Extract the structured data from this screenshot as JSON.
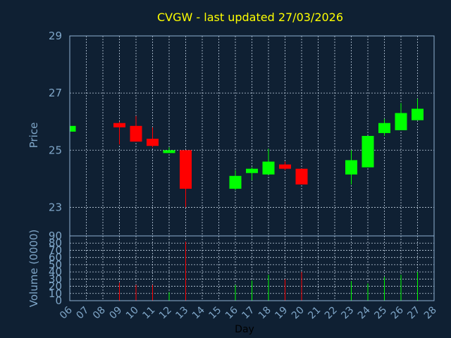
{
  "chart_data": {
    "type": "candlestick",
    "title": "CVGW - last updated 27/03/2026",
    "ylabel_price": "Price",
    "ylabel_volume": "Volume (0000)",
    "xlabel": "Day",
    "price_ylim": [
      22,
      29
    ],
    "price_ticks": [
      "23",
      "25",
      "27",
      "29"
    ],
    "volume_ylim": [
      0,
      90
    ],
    "volume_ticks": [
      "0",
      "10",
      "20",
      "30",
      "40",
      "50",
      "60",
      "70",
      "80",
      "90"
    ],
    "x_ticks": [
      "06",
      "07",
      "08",
      "09",
      "10",
      "11",
      "12",
      "13",
      "14",
      "15",
      "16",
      "17",
      "18",
      "19",
      "20",
      "21",
      "22",
      "23",
      "24",
      "25",
      "26",
      "27",
      "28"
    ],
    "up_color": "#00ff00",
    "down_color": "#ff0000",
    "candles": [
      {
        "day": "06",
        "open": 25.65,
        "close": 25.85,
        "high": 25.9,
        "low": 25.6,
        "volume": 0
      },
      {
        "day": "09",
        "open": 25.95,
        "close": 25.8,
        "high": 26.0,
        "low": 25.2,
        "volume": 25
      },
      {
        "day": "10",
        "open": 25.85,
        "close": 25.3,
        "high": 26.2,
        "low": 25.3,
        "volume": 22
      },
      {
        "day": "11",
        "open": 25.4,
        "close": 25.15,
        "high": 25.8,
        "low": 25.1,
        "volume": 22
      },
      {
        "day": "12",
        "open": 24.9,
        "close": 25.0,
        "high": 25.1,
        "low": 24.9,
        "volume": 12
      },
      {
        "day": "13",
        "open": 25.0,
        "close": 23.65,
        "high": 25.0,
        "low": 23.0,
        "volume": 82
      },
      {
        "day": "16",
        "open": 23.65,
        "close": 24.1,
        "high": 24.3,
        "low": 23.6,
        "volume": 22
      },
      {
        "day": "17",
        "open": 24.2,
        "close": 24.35,
        "high": 24.4,
        "low": 23.95,
        "volume": 28
      },
      {
        "day": "18",
        "open": 24.15,
        "close": 24.6,
        "high": 25.05,
        "low": 24.15,
        "volume": 36
      },
      {
        "day": "19",
        "open": 24.5,
        "close": 24.35,
        "high": 24.6,
        "low": 24.3,
        "volume": 30
      },
      {
        "day": "20",
        "open": 24.35,
        "close": 23.8,
        "high": 24.35,
        "low": 23.8,
        "volume": 40
      },
      {
        "day": "23",
        "open": 24.15,
        "close": 24.65,
        "high": 25.0,
        "low": 23.8,
        "volume": 27
      },
      {
        "day": "24",
        "open": 24.4,
        "close": 25.5,
        "high": 25.5,
        "low": 24.4,
        "volume": 24
      },
      {
        "day": "25",
        "open": 25.6,
        "close": 25.95,
        "high": 26.1,
        "low": 25.5,
        "volume": 33
      },
      {
        "day": "26",
        "open": 25.7,
        "close": 26.3,
        "high": 26.65,
        "low": 25.7,
        "volume": 36
      },
      {
        "day": "27",
        "open": 26.05,
        "close": 26.45,
        "high": 26.8,
        "low": 26.05,
        "volume": 40
      }
    ]
  }
}
